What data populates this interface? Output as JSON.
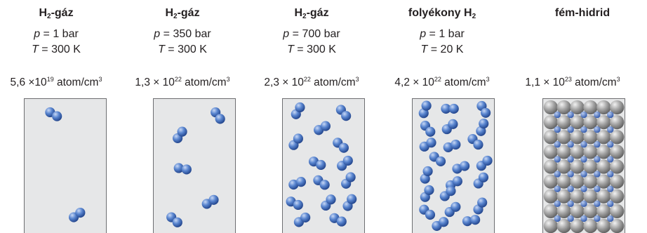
{
  "columns": [
    {
      "title_main": "H",
      "title_sub": "2",
      "title_rest": "-gáz",
      "p_label": "p",
      "p_value": " = 1 bar",
      "t_label": "T",
      "t_value": " = 300 K",
      "density_mant": "5,6 ×10",
      "density_exp": "19",
      "density_unit": " atom/cm",
      "density_unit_exp": "3"
    },
    {
      "title_main": "H",
      "title_sub": "2",
      "title_rest": "-gáz",
      "p_label": "p",
      "p_value": " = 350 bar",
      "t_label": "T",
      "t_value": " = 300 K",
      "density_mant": "1,3 × 10",
      "density_exp": "22",
      "density_unit": " atom/cm",
      "density_unit_exp": "3"
    },
    {
      "title_main": "H",
      "title_sub": "2",
      "title_rest": "-gáz",
      "p_label": "p",
      "p_value": " = 700 bar",
      "t_label": "T",
      "t_value": " = 300 K",
      "density_mant": "2,3 × 10",
      "density_exp": "22",
      "density_unit": " atom/cm",
      "density_unit_exp": "3"
    },
    {
      "title_main": "folyékony H",
      "title_sub": "2",
      "title_rest": "",
      "p_label": "p",
      "p_value": " = 1 bar",
      "t_label": "T",
      "t_value": " = 20 K",
      "density_mant": "4,2 × 10",
      "density_exp": "22",
      "density_unit": " atom/cm",
      "density_unit_exp": "3"
    },
    {
      "title_main": "fém-hidrid",
      "title_sub": "",
      "title_rest": "",
      "p_label": "",
      "p_value": "",
      "t_label": "",
      "t_value": "",
      "density_mant": "1,1 × 10",
      "density_exp": "23",
      "density_unit": " atom/cm",
      "density_unit_exp": "3"
    }
  ],
  "colors": {
    "h_atom": "#3a67b8",
    "metal_atom": "#9a9a9a",
    "container_bg": "#e6e7e8",
    "container_border": "#6d6e71"
  }
}
